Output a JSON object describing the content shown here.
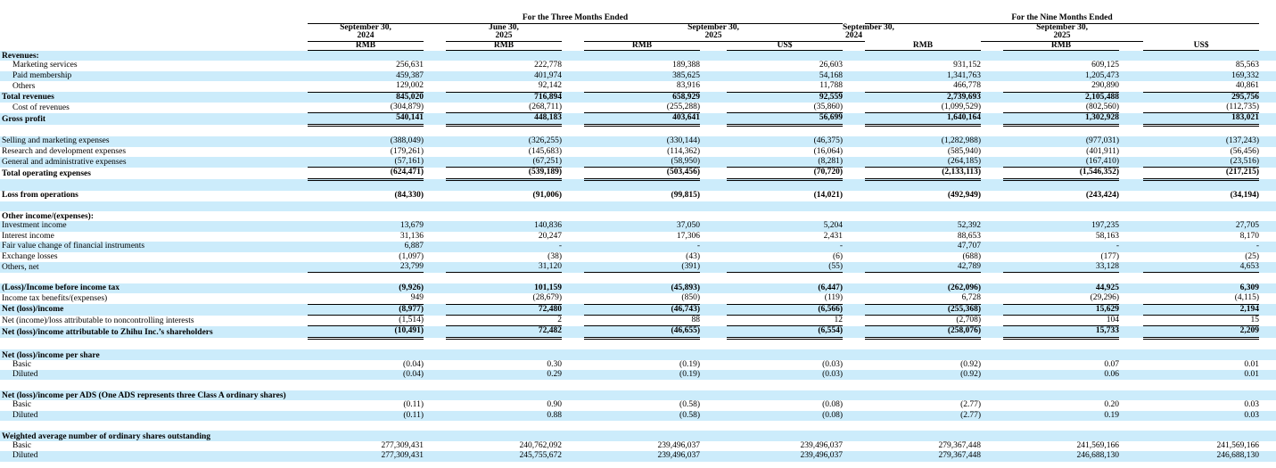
{
  "header": {
    "group_three": "For the Three Months Ended",
    "group_nine": "For the Nine Months Ended",
    "dates": [
      {
        "date": "September 30,",
        "year": "2024"
      },
      {
        "date": "June 30,",
        "year": "2025"
      },
      {
        "date": "September 30,",
        "year": "2025"
      },
      {
        "date": "September 30,",
        "year": "2024"
      },
      {
        "date": "September 30,",
        "year": "2025"
      }
    ],
    "currencies": [
      "RMB",
      "RMB",
      "RMB",
      "US$",
      "RMB",
      "RMB",
      "US$"
    ]
  },
  "table": {
    "rows": [
      [
        "Revenues:"
      ],
      [
        "Marketing services",
        "256,631",
        "222,778",
        "189,388",
        "26,603",
        "931,152",
        "609,125",
        "85,563"
      ],
      [
        "Paid membership",
        "459,387",
        "401,974",
        "385,625",
        "54,168",
        "1,341,763",
        "1,205,473",
        "169,332"
      ],
      [
        "Others",
        "129,002",
        "92,142",
        "83,916",
        "11,788",
        "466,778",
        "290,890",
        "40,861"
      ],
      [
        "Total revenues",
        "845,020",
        "716,894",
        "658,929",
        "92,559",
        "2,739,693",
        "2,105,488",
        "295,756"
      ],
      [
        "Cost of revenues",
        "(304,879)",
        "(268,711)",
        "(255,288)",
        "(35,860)",
        "(1,099,529)",
        "(802,560)",
        "(112,735)"
      ],
      [
        "Gross profit",
        "540,141",
        "448,183",
        "403,641",
        "56,699",
        "1,640,164",
        "1,302,928",
        "183,021"
      ],
      [
        "Selling and marketing expenses",
        "(388,049)",
        "(326,255)",
        "(330,144)",
        "(46,375)",
        "(1,282,988)",
        "(977,031)",
        "(137,243)"
      ],
      [
        "Research and development expenses",
        "(179,261)",
        "(145,683)",
        "(114,362)",
        "(16,064)",
        "(585,940)",
        "(401,911)",
        "(56,456)"
      ],
      [
        "General and administrative expenses",
        "(57,161)",
        "(67,251)",
        "(58,950)",
        "(8,281)",
        "(264,185)",
        "(167,410)",
        "(23,516)"
      ],
      [
        "Total operating expenses",
        "(624,471)",
        "(539,189)",
        "(503,456)",
        "(70,720)",
        "(2,133,113)",
        "(1,546,352)",
        "(217,215)"
      ],
      [
        "Loss from operations",
        "(84,330)",
        "(91,006)",
        "(99,815)",
        "(14,021)",
        "(492,949)",
        "(243,424)",
        "(34,194)"
      ],
      [
        "Other income/(expenses):"
      ],
      [
        "Investment income",
        "13,679",
        "140,836",
        "37,050",
        "5,204",
        "52,392",
        "197,235",
        "27,705"
      ],
      [
        "Interest income",
        "31,136",
        "20,247",
        "17,306",
        "2,431",
        "88,653",
        "58,163",
        "8,170"
      ],
      [
        "Fair value change of financial instruments",
        "6,887",
        "-",
        "-",
        "-",
        "47,707",
        "-",
        "-"
      ],
      [
        "Exchange losses",
        "(1,097)",
        "(38)",
        "(43)",
        "(6)",
        "(688)",
        "(177)",
        "(25)"
      ],
      [
        "Others, net",
        "23,799",
        "31,120",
        "(391)",
        "(55)",
        "42,789",
        "33,128",
        "4,653"
      ],
      [
        "(Loss)/Income before income tax",
        "(9,926)",
        "101,159",
        "(45,893)",
        "(6,447)",
        "(262,096)",
        "44,925",
        "6,309"
      ],
      [
        "Income tax benefits/(expenses)",
        "949",
        "(28,679)",
        "(850)",
        "(119)",
        "6,728",
        "(29,296)",
        "(4,115)"
      ],
      [
        "Net (loss)/income",
        "(8,977)",
        "72,480",
        "(46,743)",
        "(6,566)",
        "(255,368)",
        "15,629",
        "2,194"
      ],
      [
        "Net (income)/loss attributable to noncontrolling interests",
        "(1,514)",
        "2",
        "88",
        "12",
        "(2,708)",
        "104",
        "15"
      ],
      [
        "Net (loss)/income attributable to Zhihu Inc.’s shareholders",
        "(10,491)",
        "72,482",
        "(46,655)",
        "(6,554)",
        "(258,076)",
        "15,733",
        "2,209"
      ],
      [
        "Net (loss)/income per share"
      ],
      [
        "Basic",
        "(0.04)",
        "0.30",
        "(0.19)",
        "(0.03)",
        "(0.92)",
        "0.07",
        "0.01"
      ],
      [
        "Diluted",
        "(0.04)",
        "0.29",
        "(0.19)",
        "(0.03)",
        "(0.92)",
        "0.06",
        "0.01"
      ],
      [
        "Net (loss)/income per ADS (One ADS represents three Class A ordinary shares)"
      ],
      [
        "Basic",
        "(0.11)",
        "0.90",
        "(0.58)",
        "(0.08)",
        "(2.77)",
        "0.20",
        "0.03"
      ],
      [
        "Diluted",
        "(0.11)",
        "0.88",
        "(0.58)",
        "(0.08)",
        "(2.77)",
        "0.19",
        "0.03"
      ],
      [
        "Weighted average number of ordinary shares outstanding"
      ],
      [
        "Basic",
        "277,309,431",
        "240,762,092",
        "239,496,037",
        "239,496,037",
        "279,367,448",
        "241,569,166",
        "241,569,166"
      ],
      [
        "Diluted",
        "277,309,431",
        "245,755,672",
        "239,496,037",
        "239,496,037",
        "279,367,448",
        "246,688,130",
        "246,688,130"
      ]
    ]
  }
}
